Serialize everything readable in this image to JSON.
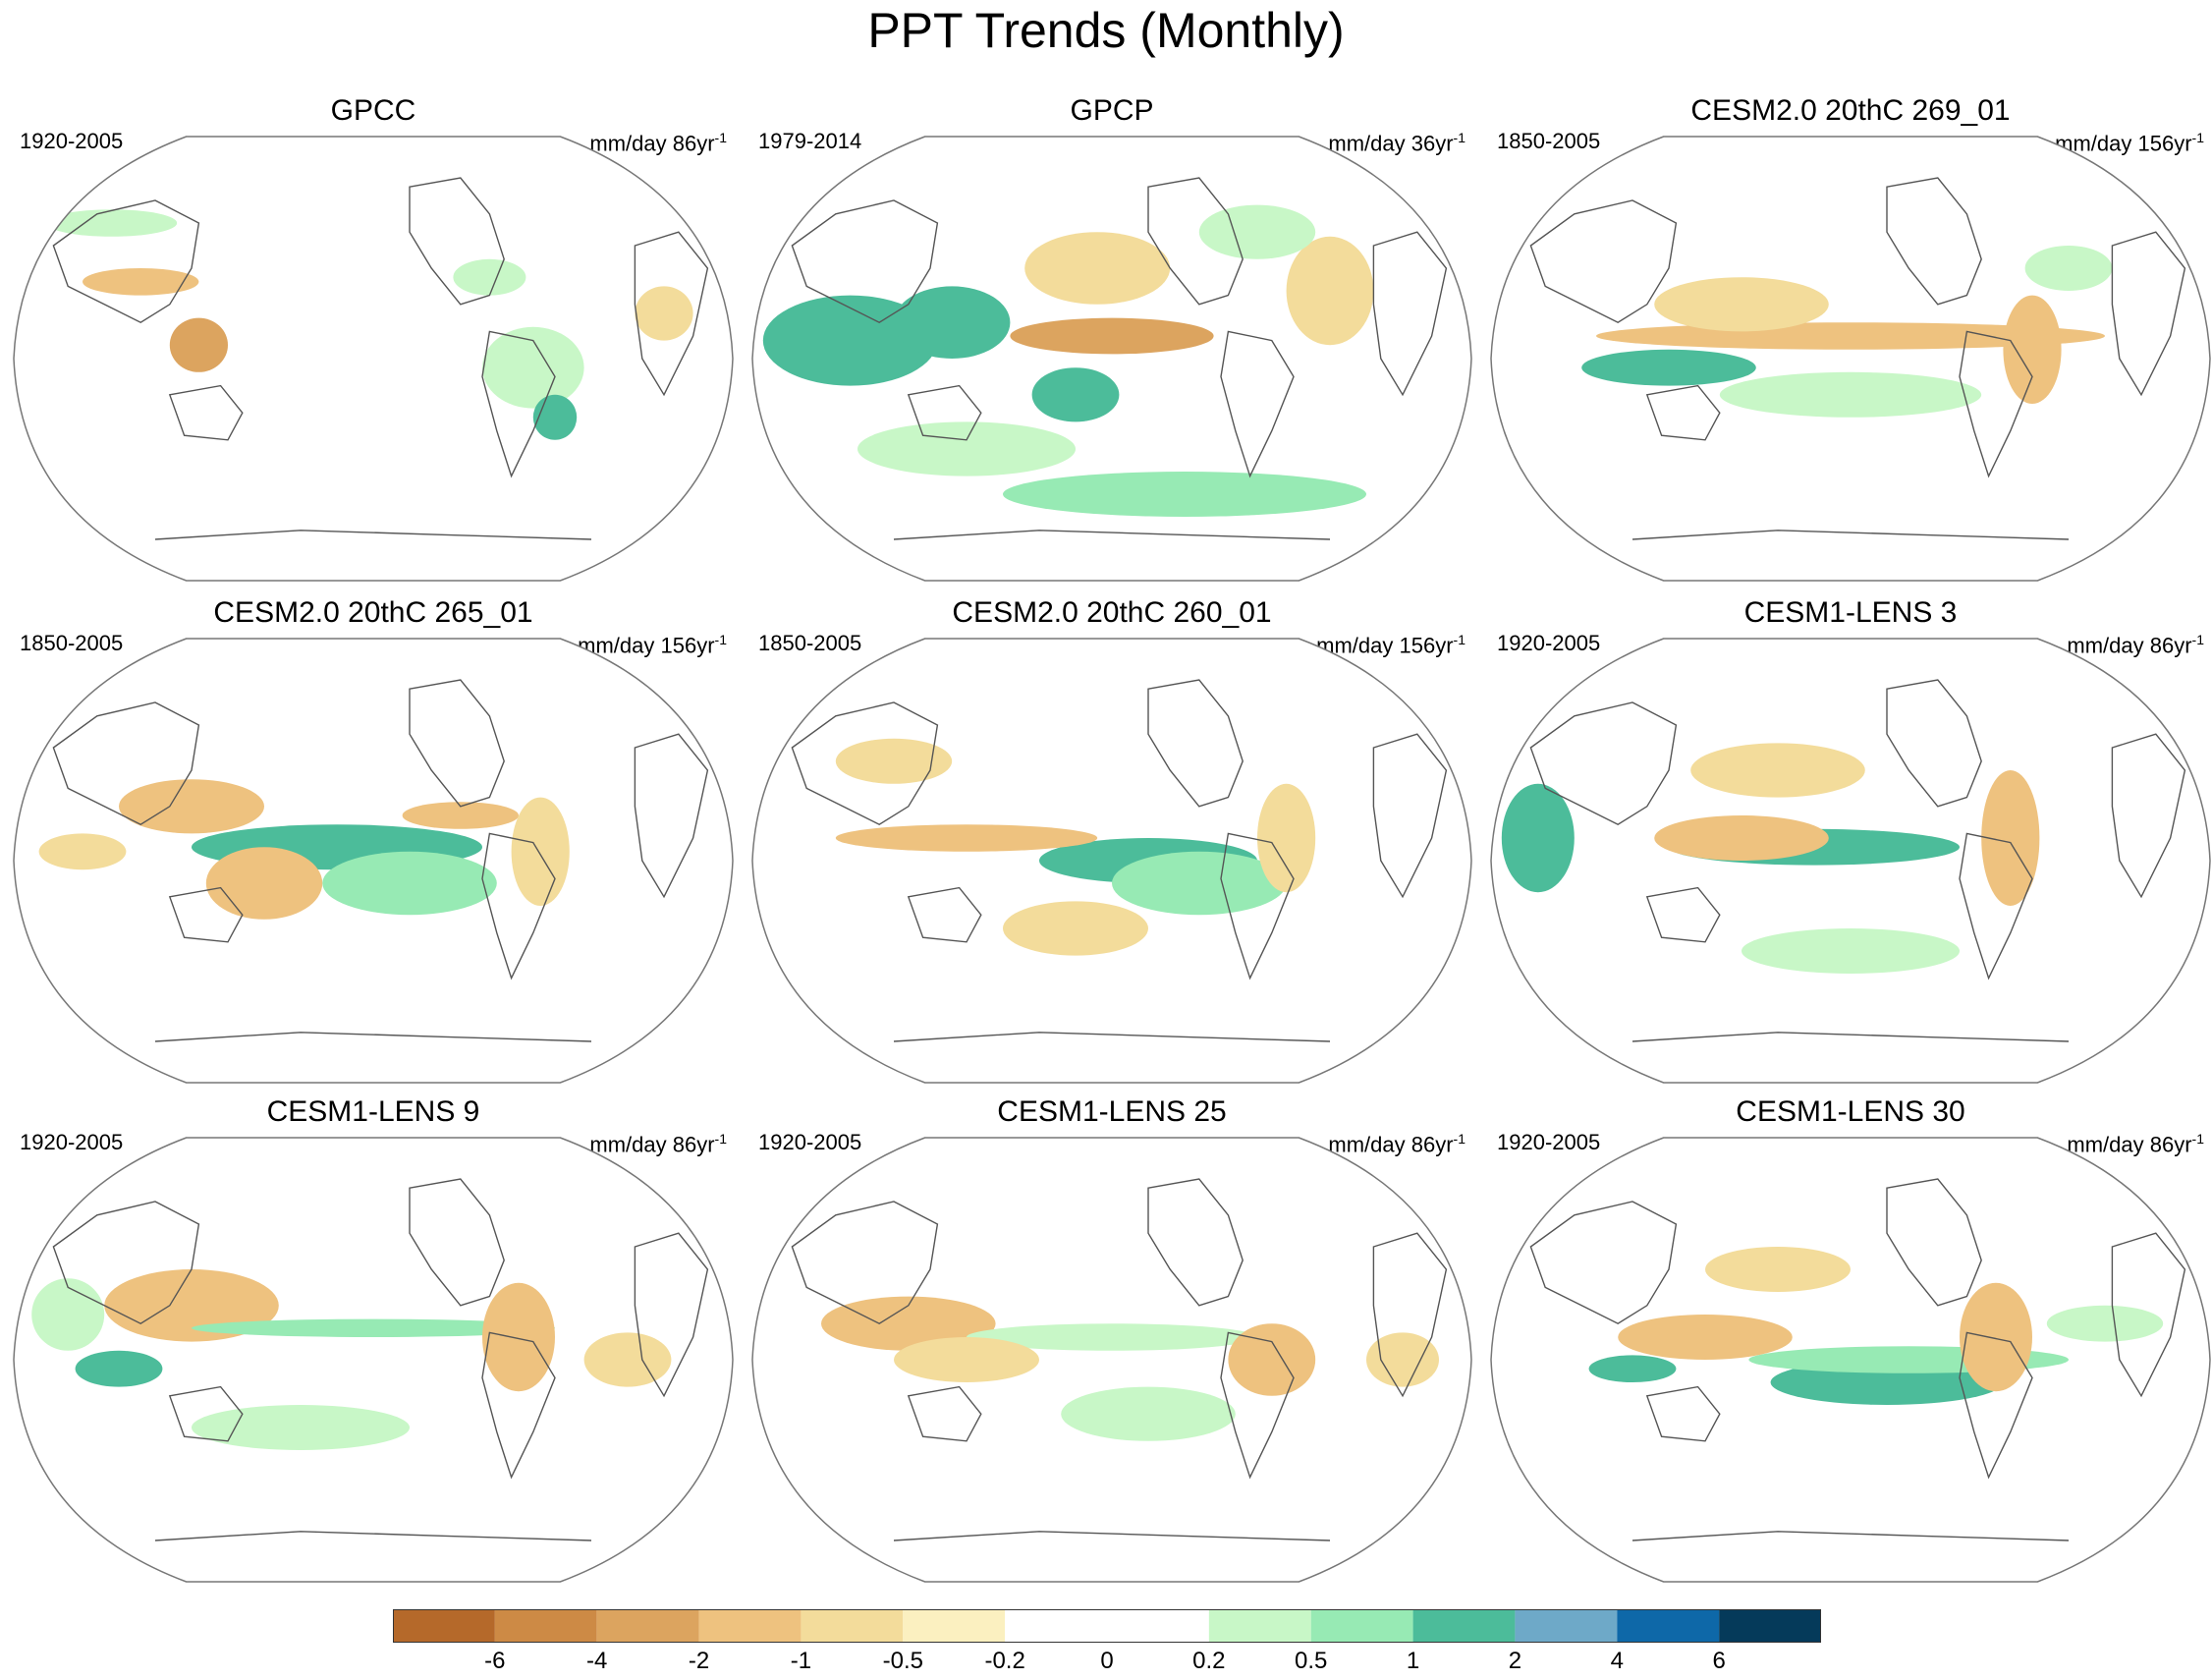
{
  "title": "PPT Trends (Monthly)",
  "panels": [
    {
      "title": "GPCC",
      "period": "1920-2005",
      "units": "mm/day 86yr",
      "units_exp": "-1"
    },
    {
      "title": "GPCP",
      "period": "1979-2014",
      "units": "mm/day 36yr",
      "units_exp": "-1"
    },
    {
      "title": "CESM2.0 20thC 269_01",
      "period": "1850-2005",
      "units": "mm/day 156yr",
      "units_exp": "-1"
    },
    {
      "title": "CESM2.0 20thC 265_01",
      "period": "1850-2005",
      "units": "mm/day 156yr",
      "units_exp": "-1"
    },
    {
      "title": "CESM2.0 20thC 260_01",
      "period": "1850-2005",
      "units": "mm/day 156yr",
      "units_exp": "-1"
    },
    {
      "title": "CESM1-LENS 3",
      "period": "1920-2005",
      "units": "mm/day 86yr",
      "units_exp": "-1"
    },
    {
      "title": "CESM1-LENS 9",
      "period": "1920-2005",
      "units": "mm/day 86yr",
      "units_exp": "-1"
    },
    {
      "title": "CESM1-LENS 25",
      "period": "1920-2005",
      "units": "mm/day 86yr",
      "units_exp": "-1"
    },
    {
      "title": "CESM1-LENS 30",
      "period": "1920-2005",
      "units": "mm/day 86yr",
      "units_exp": "-1"
    }
  ],
  "colorbar": {
    "labels": [
      "-6",
      "-4",
      "-2",
      "-1",
      "-0.5",
      "-0.2",
      "0",
      "0.2",
      "0.5",
      "1",
      "2",
      "4",
      "6"
    ],
    "colors": [
      "#b5692a",
      "#cd8a45",
      "#dca45f",
      "#eec27f",
      "#f3dc9b",
      "#fbf0c0",
      "#ffffff",
      "#ffffff",
      "#c8f7c7",
      "#97eab4",
      "#4cbc9a",
      "#6ea9c8",
      "#0e68a8",
      "#053a5a"
    ]
  },
  "palette": {
    "land_outline": "#555555",
    "map_border": "#777777"
  }
}
